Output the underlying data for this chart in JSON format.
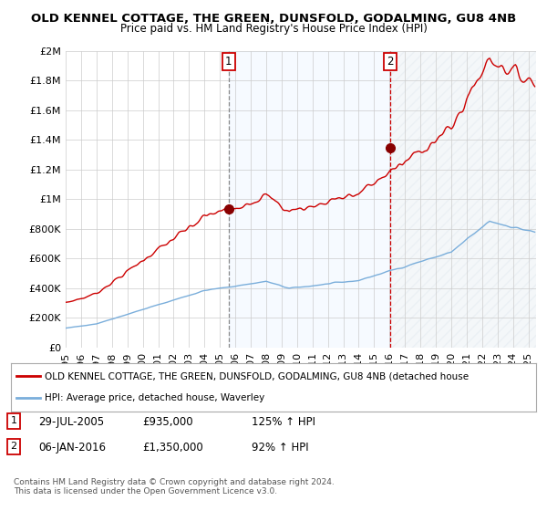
{
  "title": "OLD KENNEL COTTAGE, THE GREEN, DUNSFOLD, GODALMING, GU8 4NB",
  "subtitle": "Price paid vs. HM Land Registry's House Price Index (HPI)",
  "legend_label_red": "OLD KENNEL COTTAGE, THE GREEN, DUNSFOLD, GODALMING, GU8 4NB (detached house",
  "legend_label_blue": "HPI: Average price, detached house, Waverley",
  "annotation1_date": "29-JUL-2005",
  "annotation1_price": "£935,000",
  "annotation1_hpi": "125% ↑ HPI",
  "annotation2_date": "06-JAN-2016",
  "annotation2_price": "£1,350,000",
  "annotation2_hpi": "92% ↑ HPI",
  "footer": "Contains HM Land Registry data © Crown copyright and database right 2024.\nThis data is licensed under the Open Government Licence v3.0.",
  "vline1_x": 2005.57,
  "vline2_x": 2016.02,
  "sale1_x": 2005.57,
  "sale1_y": 935000,
  "sale2_x": 2016.02,
  "sale2_y": 1350000,
  "ylim": [
    0,
    2000000
  ],
  "xlim": [
    1995,
    2025.5
  ],
  "background_color": "#ffffff",
  "grid_color": "#cccccc",
  "red_color": "#cc0000",
  "blue_color": "#7aaedb",
  "shade_color": "#ddeeff"
}
